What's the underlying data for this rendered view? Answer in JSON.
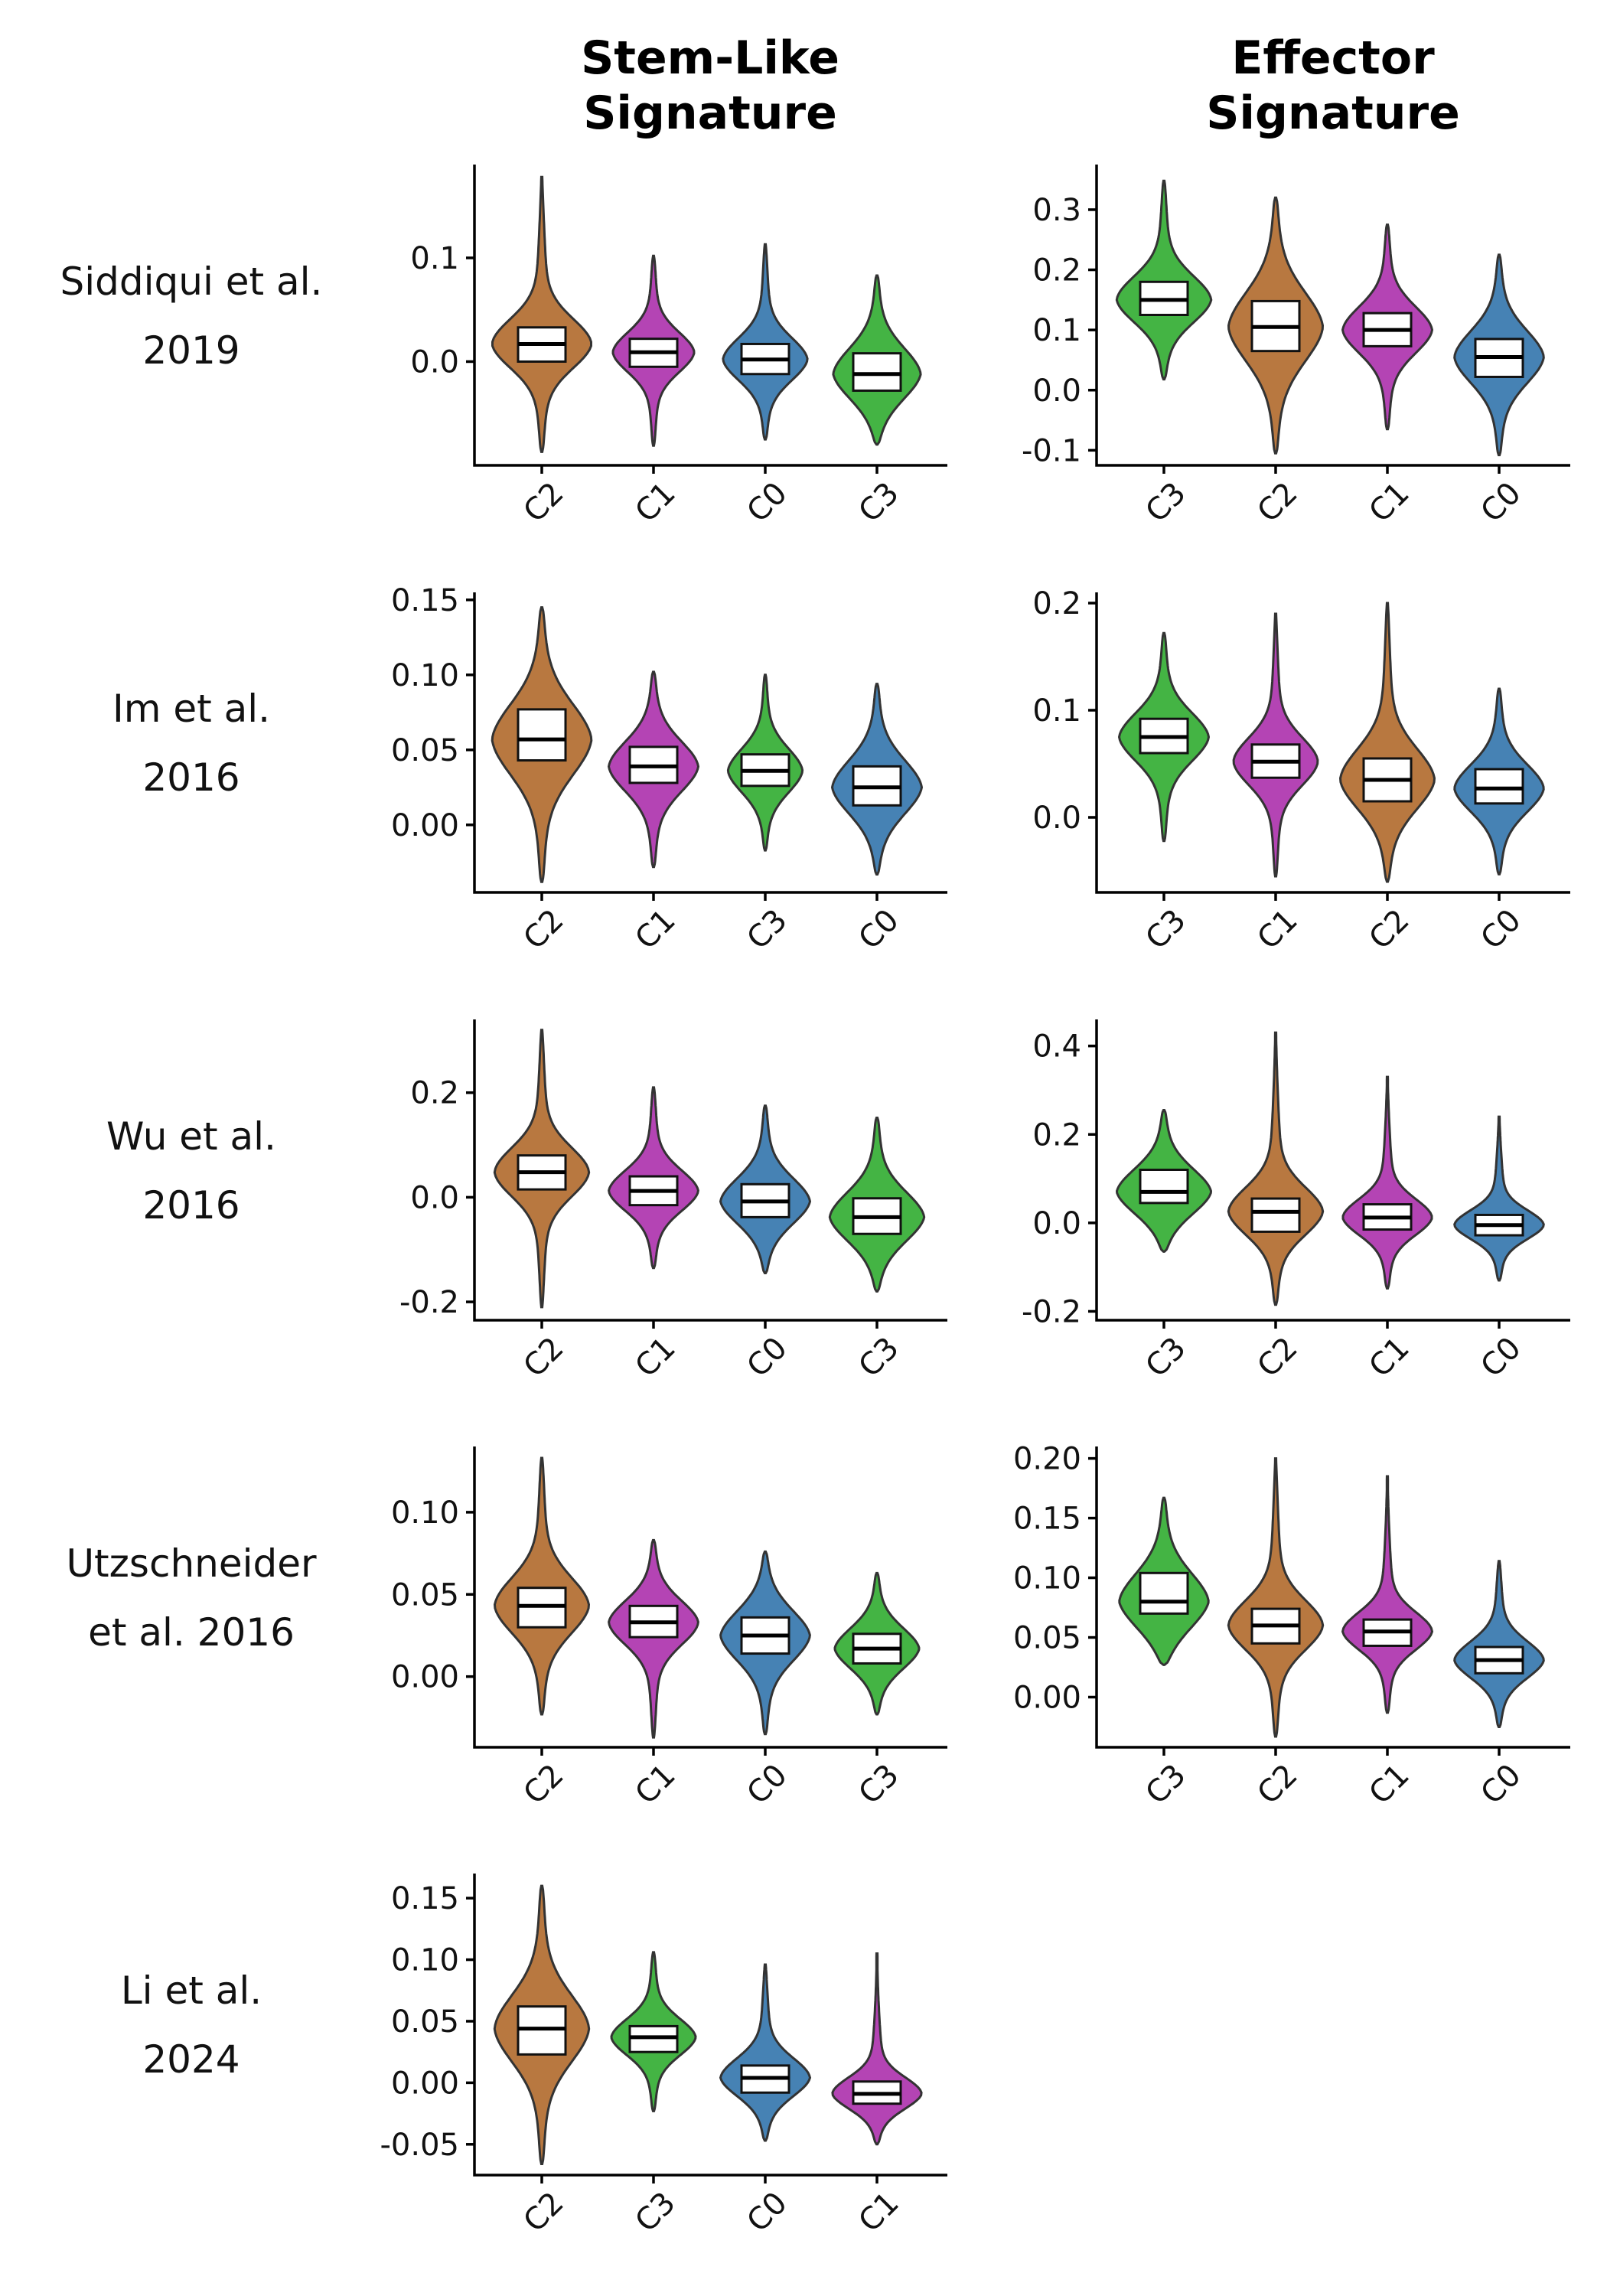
{
  "figure": {
    "column_titles": [
      [
        "Stem-Like",
        "Signature"
      ],
      [
        "Effector",
        "Signature"
      ]
    ],
    "row_labels": [
      [
        "Siddiqui et al.",
        "2019"
      ],
      [
        "Im et al.",
        "2016"
      ],
      [
        "Wu et al.",
        "2016"
      ],
      [
        "Utzschneider",
        "et al. 2016"
      ],
      [
        "Li et al.",
        "2024"
      ]
    ]
  },
  "colors": {
    "C0": "#4682B4",
    "C1": "#B444B4",
    "C2": "#B87840",
    "C3": "#44B444"
  },
  "chart_data": [
    {
      "type": "violin",
      "row": 0,
      "col": 0,
      "ylim": [
        -0.1,
        0.19
      ],
      "yticks": [
        0.0,
        0.1
      ],
      "ytick_labels": [
        "0.0",
        "0.1"
      ],
      "categories": [
        "C2",
        "C1",
        "C0",
        "C3"
      ],
      "groups": [
        {
          "name": "C2",
          "min": -0.087,
          "max": 0.178,
          "q1": 0.0,
          "median": 0.017,
          "q3": 0.033,
          "width": 1.0
        },
        {
          "name": "C1",
          "min": -0.081,
          "max": 0.102,
          "q1": -0.005,
          "median": 0.009,
          "q3": 0.022,
          "width": 0.82
        },
        {
          "name": "C0",
          "min": -0.075,
          "max": 0.113,
          "q1": -0.012,
          "median": 0.002,
          "q3": 0.017,
          "width": 0.85
        },
        {
          "name": "C3",
          "min": -0.08,
          "max": 0.083,
          "q1": -0.028,
          "median": -0.012,
          "q3": 0.008,
          "width": 0.88
        }
      ]
    },
    {
      "type": "violin",
      "row": 0,
      "col": 1,
      "ylim": [
        -0.125,
        0.375
      ],
      "yticks": [
        -0.1,
        0.0,
        0.1,
        0.2,
        0.3
      ],
      "ytick_labels": [
        "-0.1",
        "0.0",
        "0.1",
        "0.2",
        "0.3"
      ],
      "categories": [
        "C3",
        "C2",
        "C1",
        "C0"
      ],
      "groups": [
        {
          "name": "C3",
          "min": 0.018,
          "max": 0.348,
          "q1": 0.125,
          "median": 0.15,
          "q3": 0.18,
          "width": 0.95
        },
        {
          "name": "C2",
          "min": -0.105,
          "max": 0.32,
          "q1": 0.065,
          "median": 0.105,
          "q3": 0.148,
          "width": 0.95
        },
        {
          "name": "C1",
          "min": -0.065,
          "max": 0.275,
          "q1": 0.073,
          "median": 0.1,
          "q3": 0.128,
          "width": 0.9
        },
        {
          "name": "C0",
          "min": -0.108,
          "max": 0.225,
          "q1": 0.022,
          "median": 0.055,
          "q3": 0.085,
          "width": 0.9
        }
      ]
    },
    {
      "type": "violin",
      "row": 1,
      "col": 0,
      "ylim": [
        -0.045,
        0.155
      ],
      "yticks": [
        0.0,
        0.05,
        0.1,
        0.15
      ],
      "ytick_labels": [
        "0.00",
        "0.05",
        "0.10",
        "0.15"
      ],
      "categories": [
        "C2",
        "C1",
        "C3",
        "C0"
      ],
      "groups": [
        {
          "name": "C2",
          "min": -0.038,
          "max": 0.145,
          "q1": 0.043,
          "median": 0.057,
          "q3": 0.077,
          "width": 1.0
        },
        {
          "name": "C1",
          "min": -0.028,
          "max": 0.102,
          "q1": 0.028,
          "median": 0.039,
          "q3": 0.052,
          "width": 0.9
        },
        {
          "name": "C3",
          "min": -0.017,
          "max": 0.1,
          "q1": 0.026,
          "median": 0.036,
          "q3": 0.047,
          "width": 0.75
        },
        {
          "name": "C0",
          "min": -0.033,
          "max": 0.094,
          "q1": 0.013,
          "median": 0.025,
          "q3": 0.039,
          "width": 0.9
        }
      ]
    },
    {
      "type": "violin",
      "row": 1,
      "col": 1,
      "ylim": [
        -0.07,
        0.21
      ],
      "yticks": [
        0.0,
        0.1,
        0.2
      ],
      "ytick_labels": [
        "0.0",
        "0.1",
        "0.2"
      ],
      "categories": [
        "C3",
        "C1",
        "C2",
        "C0"
      ],
      "groups": [
        {
          "name": "C3",
          "min": -0.022,
          "max": 0.172,
          "q1": 0.06,
          "median": 0.075,
          "q3": 0.092,
          "width": 0.9
        },
        {
          "name": "C1",
          "min": -0.055,
          "max": 0.19,
          "q1": 0.037,
          "median": 0.052,
          "q3": 0.068,
          "width": 0.85
        },
        {
          "name": "C2",
          "min": -0.06,
          "max": 0.2,
          "q1": 0.015,
          "median": 0.035,
          "q3": 0.055,
          "width": 0.95
        },
        {
          "name": "C0",
          "min": -0.053,
          "max": 0.12,
          "q1": 0.013,
          "median": 0.027,
          "q3": 0.045,
          "width": 0.9
        }
      ]
    },
    {
      "type": "violin",
      "row": 2,
      "col": 0,
      "ylim": [
        -0.235,
        0.34
      ],
      "yticks": [
        -0.2,
        0.0,
        0.2
      ],
      "ytick_labels": [
        "-0.2",
        "0.0",
        "0.2"
      ],
      "categories": [
        "C2",
        "C1",
        "C0",
        "C3"
      ],
      "groups": [
        {
          "name": "C2",
          "min": -0.21,
          "max": 0.32,
          "q1": 0.015,
          "median": 0.048,
          "q3": 0.08,
          "width": 0.95
        },
        {
          "name": "C1",
          "min": -0.135,
          "max": 0.21,
          "q1": -0.015,
          "median": 0.012,
          "q3": 0.04,
          "width": 0.9
        },
        {
          "name": "C0",
          "min": -0.145,
          "max": 0.175,
          "q1": -0.038,
          "median": -0.008,
          "q3": 0.025,
          "width": 0.9
        },
        {
          "name": "C3",
          "min": -0.18,
          "max": 0.152,
          "q1": -0.07,
          "median": -0.038,
          "q3": -0.002,
          "width": 0.95
        }
      ]
    },
    {
      "type": "violin",
      "row": 2,
      "col": 1,
      "ylim": [
        -0.22,
        0.46
      ],
      "yticks": [
        -0.2,
        0.0,
        0.2,
        0.4
      ],
      "ytick_labels": [
        "-0.2",
        "0.0",
        "0.2",
        "0.4"
      ],
      "categories": [
        "C3",
        "C2",
        "C1",
        "C0"
      ],
      "groups": [
        {
          "name": "C3",
          "min": -0.065,
          "max": 0.255,
          "q1": 0.045,
          "median": 0.07,
          "q3": 0.12,
          "width": 0.95
        },
        {
          "name": "C2",
          "min": -0.185,
          "max": 0.43,
          "q1": -0.02,
          "median": 0.025,
          "q3": 0.055,
          "width": 0.95
        },
        {
          "name": "C1",
          "min": -0.148,
          "max": 0.33,
          "q1": -0.015,
          "median": 0.012,
          "q3": 0.042,
          "width": 0.9
        },
        {
          "name": "C0",
          "min": -0.13,
          "max": 0.24,
          "q1": -0.028,
          "median": -0.005,
          "q3": 0.018,
          "width": 0.9
        }
      ]
    },
    {
      "type": "violin",
      "row": 3,
      "col": 0,
      "ylim": [
        -0.043,
        0.14
      ],
      "yticks": [
        0.0,
        0.05,
        0.1
      ],
      "ytick_labels": [
        "0.00",
        "0.05",
        "0.10"
      ],
      "categories": [
        "C2",
        "C1",
        "C0",
        "C3"
      ],
      "groups": [
        {
          "name": "C2",
          "min": -0.023,
          "max": 0.133,
          "q1": 0.03,
          "median": 0.043,
          "q3": 0.054,
          "width": 0.95
        },
        {
          "name": "C1",
          "min": -0.037,
          "max": 0.083,
          "q1": 0.024,
          "median": 0.033,
          "q3": 0.043,
          "width": 0.9
        },
        {
          "name": "C0",
          "min": -0.035,
          "max": 0.076,
          "q1": 0.014,
          "median": 0.025,
          "q3": 0.036,
          "width": 0.9
        },
        {
          "name": "C3",
          "min": -0.023,
          "max": 0.063,
          "q1": 0.008,
          "median": 0.017,
          "q3": 0.026,
          "width": 0.85
        }
      ]
    },
    {
      "type": "violin",
      "row": 3,
      "col": 1,
      "ylim": [
        -0.042,
        0.21
      ],
      "yticks": [
        0.0,
        0.05,
        0.1,
        0.15,
        0.2
      ],
      "ytick_labels": [
        "0.00",
        "0.05",
        "0.10",
        "0.15",
        "0.20"
      ],
      "categories": [
        "C3",
        "C2",
        "C1",
        "C0"
      ],
      "groups": [
        {
          "name": "C3",
          "min": 0.027,
          "max": 0.167,
          "q1": 0.07,
          "median": 0.08,
          "q3": 0.104,
          "width": 0.9
        },
        {
          "name": "C2",
          "min": -0.033,
          "max": 0.2,
          "q1": 0.045,
          "median": 0.06,
          "q3": 0.074,
          "width": 0.95
        },
        {
          "name": "C1",
          "min": -0.013,
          "max": 0.185,
          "q1": 0.043,
          "median": 0.055,
          "q3": 0.065,
          "width": 0.9
        },
        {
          "name": "C0",
          "min": -0.025,
          "max": 0.114,
          "q1": 0.02,
          "median": 0.031,
          "q3": 0.042,
          "width": 0.9
        }
      ]
    },
    {
      "type": "violin",
      "row": 4,
      "col": 0,
      "ylim": [
        -0.075,
        0.17
      ],
      "yticks": [
        -0.05,
        0.0,
        0.05,
        0.1,
        0.15
      ],
      "ytick_labels": [
        "-0.05",
        "0.00",
        "0.05",
        "0.10",
        "0.15"
      ],
      "categories": [
        "C2",
        "C3",
        "C0",
        "C1"
      ],
      "groups": [
        {
          "name": "C2",
          "min": -0.066,
          "max": 0.16,
          "q1": 0.023,
          "median": 0.044,
          "q3": 0.062,
          "width": 0.95
        },
        {
          "name": "C3",
          "min": -0.023,
          "max": 0.106,
          "q1": 0.025,
          "median": 0.037,
          "q3": 0.046,
          "width": 0.85
        },
        {
          "name": "C0",
          "min": -0.047,
          "max": 0.096,
          "q1": -0.008,
          "median": 0.004,
          "q3": 0.014,
          "width": 0.9
        },
        {
          "name": "C1",
          "min": -0.05,
          "max": 0.105,
          "q1": -0.017,
          "median": -0.009,
          "q3": 0.001,
          "width": 0.9
        }
      ]
    }
  ]
}
